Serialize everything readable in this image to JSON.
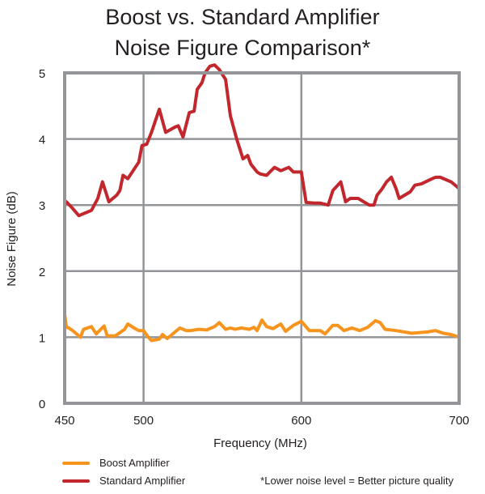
{
  "chart_data": {
    "type": "line",
    "title_line1": "Boost vs. Standard Amplifier",
    "title_line2": "Noise Figure Comparison*",
    "xlabel": "Frequency (MHz)",
    "ylabel": "Noise Figure (dB)",
    "xlim": [
      450,
      700
    ],
    "ylim": [
      0,
      5
    ],
    "x_ticks": [
      450,
      500,
      600,
      700
    ],
    "y_ticks": [
      0,
      1,
      2,
      3,
      4,
      5
    ],
    "x_tick_labels": [
      "450",
      "500",
      "600",
      "700"
    ],
    "y_tick_labels": [
      "0",
      "1",
      "2",
      "3",
      "4",
      "5"
    ],
    "grid": true,
    "legend_position": "bottom-left",
    "footnote": "*Lower noise level = Better picture quality",
    "series": [
      {
        "name": "Boost Amplifier",
        "color": "#f7941d",
        "points": [
          [
            450,
            1.35
          ],
          [
            451,
            1.15
          ],
          [
            452,
            1.15
          ],
          [
            455,
            1.1
          ],
          [
            460,
            1.0
          ],
          [
            462,
            1.12
          ],
          [
            467,
            1.16
          ],
          [
            470,
            1.05
          ],
          [
            475,
            1.17
          ],
          [
            477,
            1.02
          ],
          [
            482,
            1.02
          ],
          [
            488,
            1.12
          ],
          [
            490,
            1.2
          ],
          [
            494,
            1.14
          ],
          [
            497,
            1.1
          ],
          [
            500,
            1.1
          ],
          [
            503,
            1.0
          ],
          [
            505,
            0.95
          ],
          [
            510,
            0.97
          ],
          [
            512,
            1.04
          ],
          [
            515,
            0.98
          ],
          [
            520,
            1.08
          ],
          [
            523,
            1.14
          ],
          [
            527,
            1.1
          ],
          [
            530,
            1.1
          ],
          [
            535,
            1.12
          ],
          [
            540,
            1.11
          ],
          [
            545,
            1.16
          ],
          [
            548,
            1.22
          ],
          [
            552,
            1.12
          ],
          [
            555,
            1.14
          ],
          [
            558,
            1.12
          ],
          [
            562,
            1.14
          ],
          [
            567,
            1.12
          ],
          [
            570,
            1.15
          ],
          [
            572,
            1.1
          ],
          [
            575,
            1.26
          ],
          [
            578,
            1.16
          ],
          [
            582,
            1.13
          ],
          [
            587,
            1.2
          ],
          [
            590,
            1.09
          ],
          [
            595,
            1.18
          ],
          [
            600,
            1.24
          ],
          [
            605,
            1.1
          ],
          [
            612,
            1.1
          ],
          [
            615,
            1.05
          ],
          [
            620,
            1.18
          ],
          [
            623,
            1.18
          ],
          [
            627,
            1.1
          ],
          [
            632,
            1.14
          ],
          [
            637,
            1.1
          ],
          [
            642,
            1.15
          ],
          [
            647,
            1.25
          ],
          [
            650,
            1.22
          ],
          [
            653,
            1.12
          ],
          [
            660,
            1.1
          ],
          [
            670,
            1.06
          ],
          [
            680,
            1.08
          ],
          [
            685,
            1.1
          ],
          [
            690,
            1.06
          ],
          [
            695,
            1.04
          ],
          [
            700,
            1.0
          ]
        ]
      },
      {
        "name": "Standard Amplifier",
        "color": "#c1272d",
        "points": [
          [
            450,
            3.0
          ],
          [
            451,
            3.05
          ],
          [
            455,
            2.95
          ],
          [
            459,
            2.84
          ],
          [
            461,
            2.86
          ],
          [
            465,
            2.9
          ],
          [
            467,
            2.92
          ],
          [
            471,
            3.1
          ],
          [
            474,
            3.35
          ],
          [
            478,
            3.05
          ],
          [
            483,
            3.15
          ],
          [
            485,
            3.22
          ],
          [
            487,
            3.45
          ],
          [
            490,
            3.4
          ],
          [
            497,
            3.65
          ],
          [
            499,
            3.9
          ],
          [
            502,
            3.92
          ],
          [
            505,
            4.1
          ],
          [
            510,
            4.45
          ],
          [
            514,
            4.1
          ],
          [
            520,
            4.18
          ],
          [
            522,
            4.2
          ],
          [
            525,
            4.03
          ],
          [
            529,
            4.4
          ],
          [
            532,
            4.42
          ],
          [
            534,
            4.75
          ],
          [
            537,
            4.85
          ],
          [
            539,
            5.0
          ],
          [
            542,
            5.1
          ],
          [
            545,
            5.12
          ],
          [
            548,
            5.05
          ],
          [
            552,
            4.9
          ],
          [
            555,
            4.35
          ],
          [
            559,
            4.0
          ],
          [
            563,
            3.7
          ],
          [
            566,
            3.75
          ],
          [
            568,
            3.62
          ],
          [
            572,
            3.5
          ],
          [
            574,
            3.47
          ],
          [
            578,
            3.45
          ],
          [
            580,
            3.5
          ],
          [
            583,
            3.57
          ],
          [
            587,
            3.52
          ],
          [
            592,
            3.57
          ],
          [
            595,
            3.5
          ],
          [
            600,
            3.5
          ],
          [
            603,
            3.04
          ],
          [
            608,
            3.03
          ],
          [
            612,
            3.03
          ],
          [
            617,
            3.0
          ],
          [
            620,
            3.22
          ],
          [
            625,
            3.35
          ],
          [
            628,
            3.05
          ],
          [
            631,
            3.1
          ],
          [
            636,
            3.1
          ],
          [
            643,
            3.0
          ],
          [
            646,
            3.0
          ],
          [
            648,
            3.15
          ],
          [
            651,
            3.24
          ],
          [
            654,
            3.35
          ],
          [
            657,
            3.42
          ],
          [
            660,
            3.25
          ],
          [
            662,
            3.1
          ],
          [
            669,
            3.2
          ],
          [
            672,
            3.3
          ],
          [
            676,
            3.32
          ],
          [
            683,
            3.4
          ],
          [
            685,
            3.42
          ],
          [
            688,
            3.42
          ],
          [
            695,
            3.35
          ],
          [
            700,
            3.25
          ]
        ]
      }
    ]
  }
}
